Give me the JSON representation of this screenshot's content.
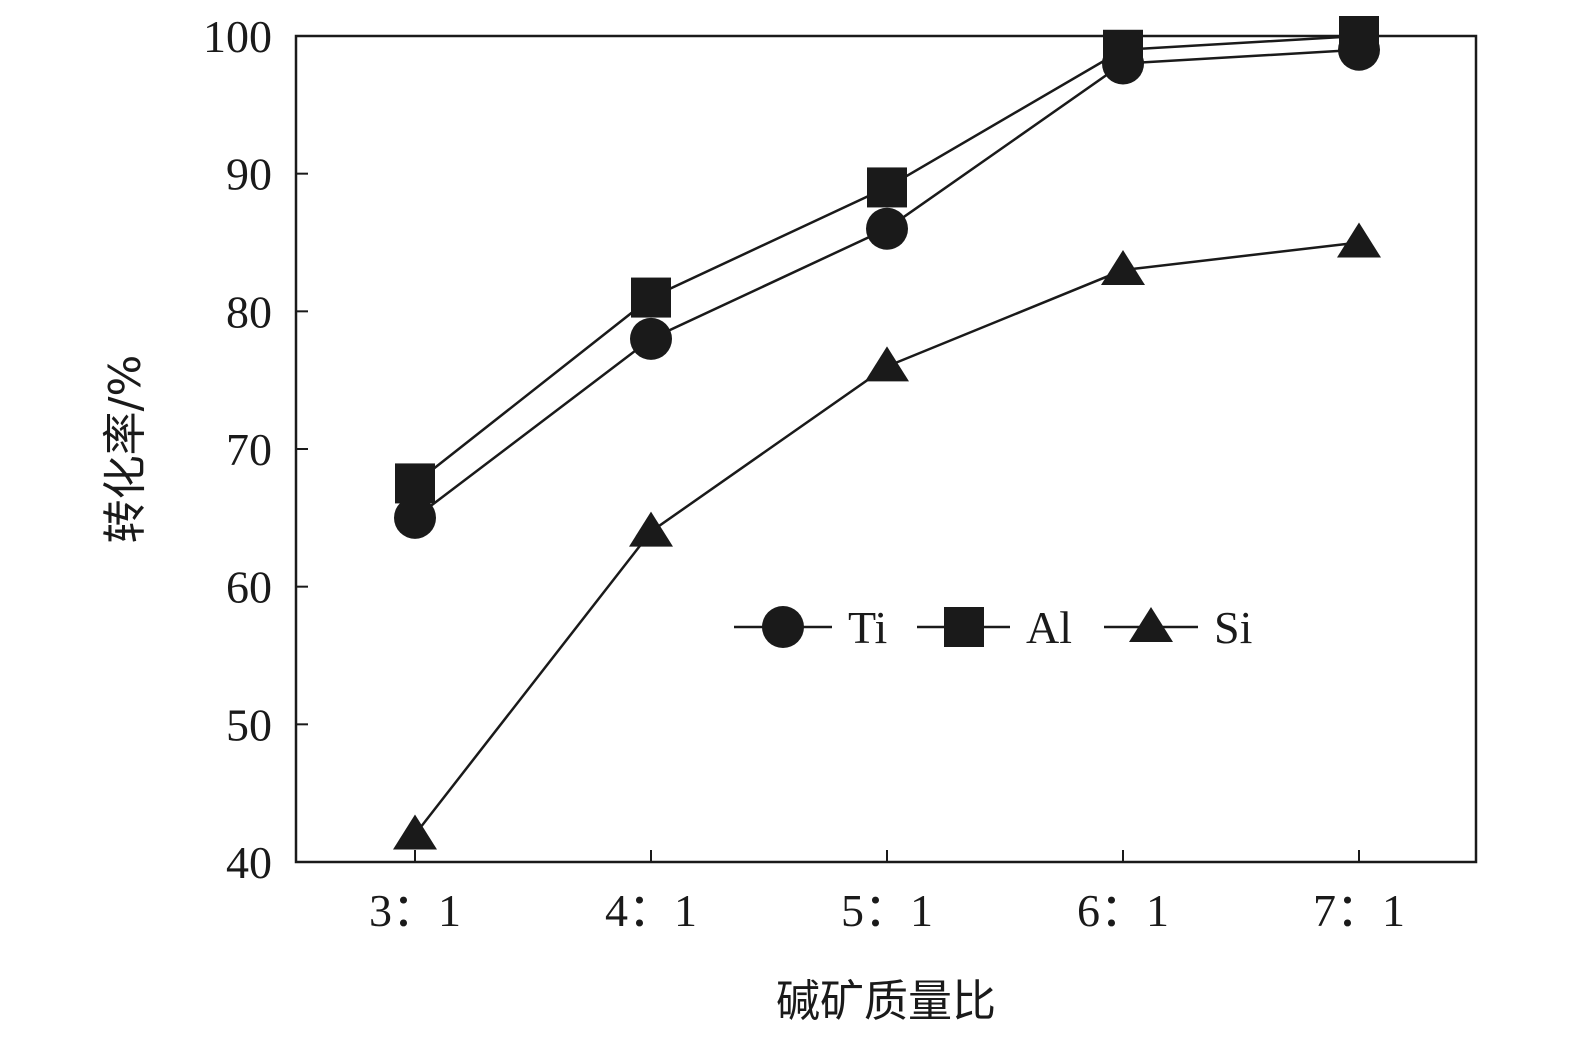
{
  "chart_data": {
    "type": "line",
    "categories": [
      "3：1",
      "4：1",
      "5：1",
      "6：1",
      "7：1"
    ],
    "series": [
      {
        "name": "Ti",
        "marker": "circle",
        "values": [
          65,
          78,
          86,
          98,
          99
        ]
      },
      {
        "name": "Al",
        "marker": "square",
        "values": [
          67.5,
          81,
          89,
          99,
          100
        ]
      },
      {
        "name": "Si",
        "marker": "triangle",
        "values": [
          42,
          64,
          76,
          83,
          85
        ]
      }
    ],
    "xlabel": "碱矿质量比",
    "ylabel": "转化率/%",
    "ylim": [
      40,
      100
    ],
    "yticks": [
      40,
      50,
      60,
      70,
      80,
      90,
      100
    ],
    "grid": false,
    "legend_position": "center-right",
    "line_color": "#1a1a1a"
  }
}
